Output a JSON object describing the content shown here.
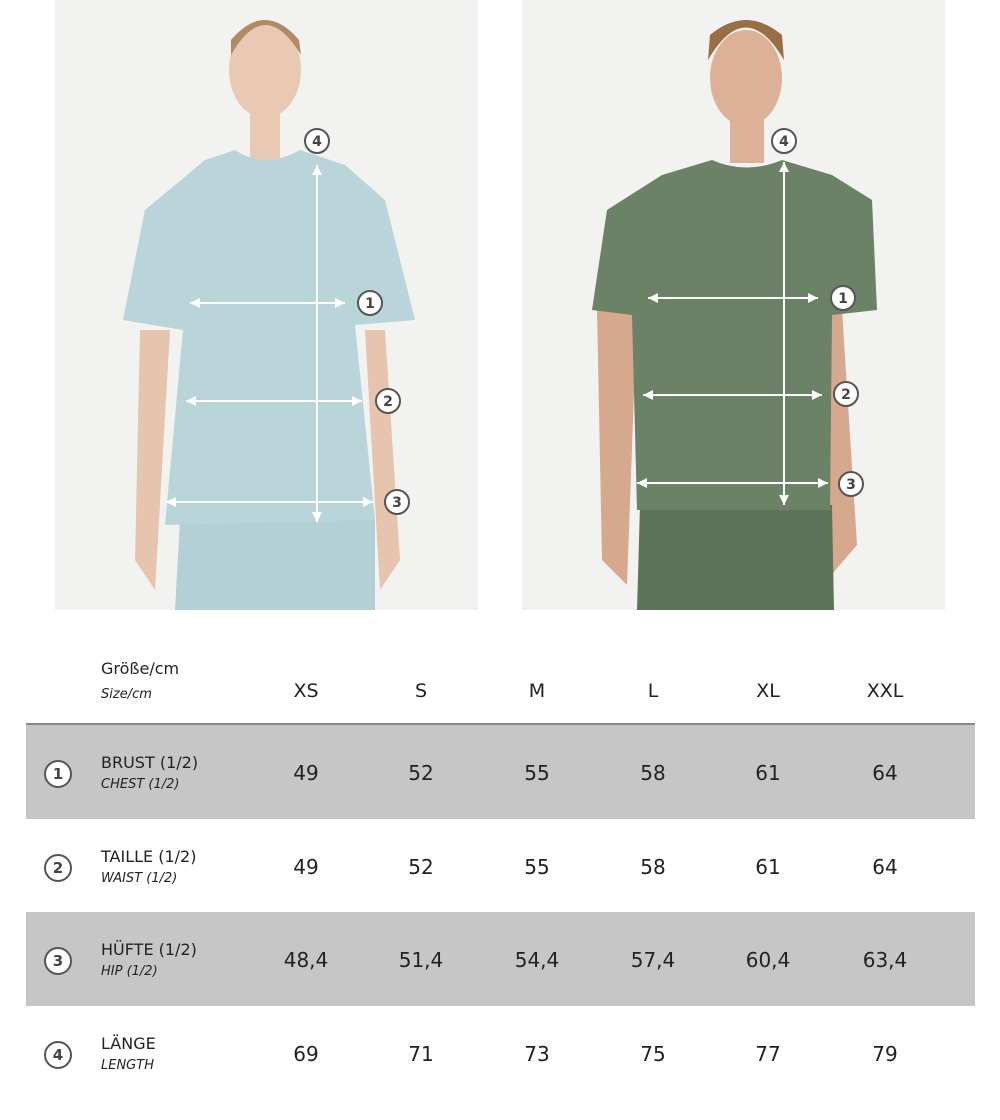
{
  "colors": {
    "row_shade": "#c6c6c6",
    "shirt_women": "#b9d5da",
    "shirt_men": "#6b8266",
    "photo_bg": "#f2f2f0"
  },
  "header": {
    "label_de": "Größe/cm",
    "label_en": "Size/cm",
    "sizes": [
      "XS",
      "S",
      "M",
      "L",
      "XL",
      "XXL"
    ]
  },
  "rows": [
    {
      "num": "1",
      "label_de": "BRUST (1/2)",
      "label_en": "CHEST (1/2)",
      "values": [
        "49",
        "52",
        "55",
        "58",
        "61",
        "64"
      ],
      "shaded": true
    },
    {
      "num": "2",
      "label_de": "TAILLE (1/2)",
      "label_en": "WAIST (1/2)",
      "values": [
        "49",
        "52",
        "55",
        "58",
        "61",
        "64"
      ],
      "shaded": false
    },
    {
      "num": "3",
      "label_de": "HÜFTE (1/2)",
      "label_en": "HIP (1/2)",
      "values": [
        "48,4",
        "51,4",
        "54,4",
        "57,4",
        "60,4",
        "63,4"
      ],
      "shaded": true
    },
    {
      "num": "4",
      "label_de": "LÄNGE",
      "label_en": "LENGTH",
      "values": [
        "69",
        "71",
        "73",
        "75",
        "77",
        "79"
      ],
      "shaded": false
    }
  ],
  "markers": [
    "1",
    "2",
    "3",
    "4"
  ]
}
